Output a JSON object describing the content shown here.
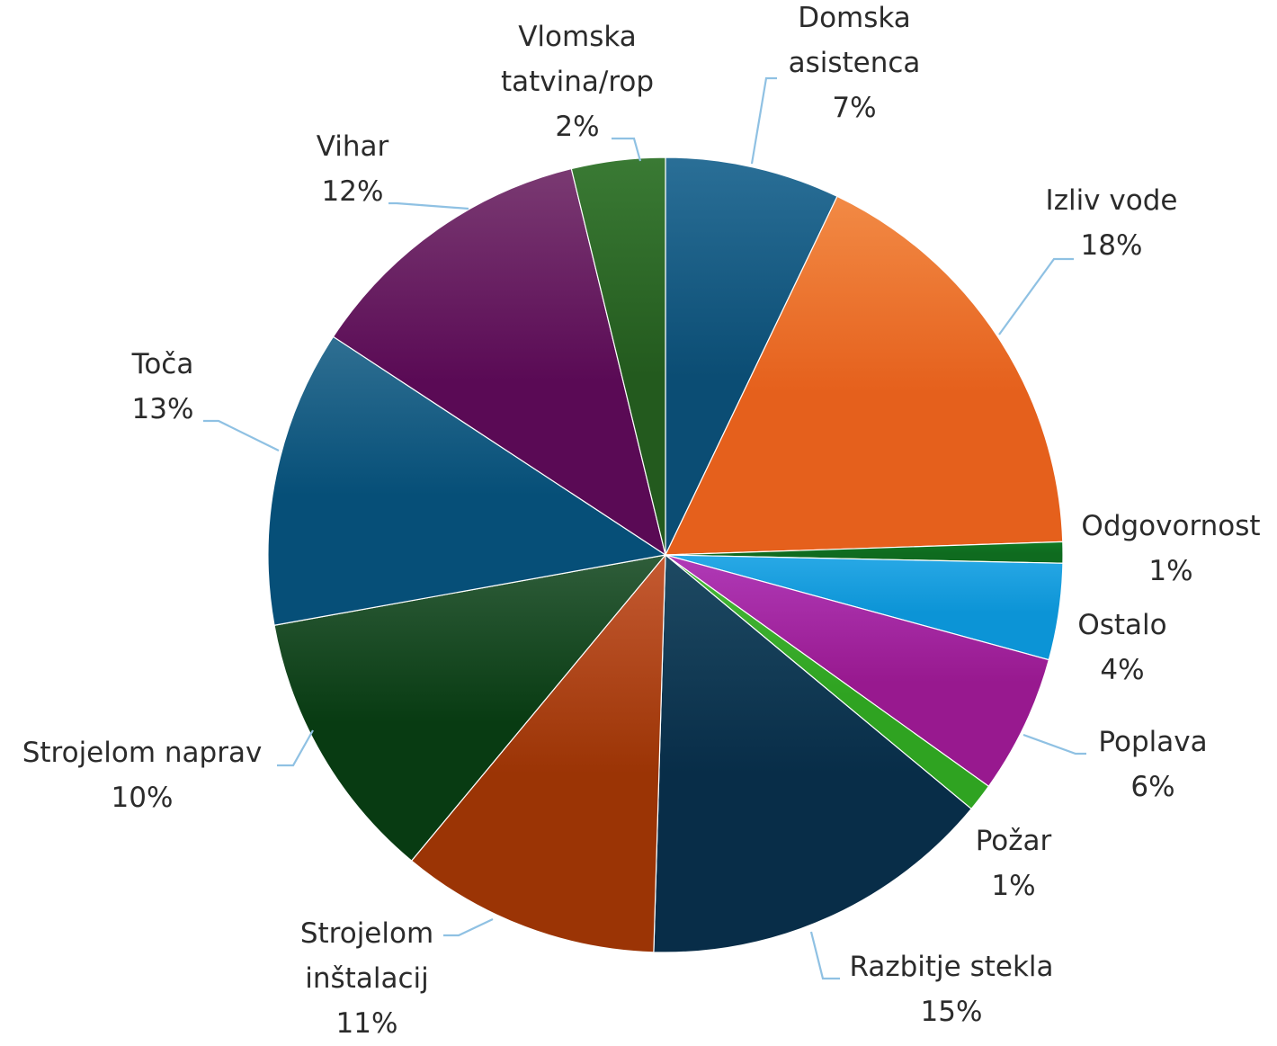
{
  "chart_data": {
    "type": "pie",
    "title": "",
    "slices": [
      {
        "label": "Domska\nasistenca",
        "percent_label": "7%",
        "value": 7,
        "color": "#2a6f97",
        "color_dark": "#0b4d74"
      },
      {
        "label": "Izliv vode",
        "percent_label": "18%",
        "value": 18,
        "color": "#f28a45",
        "color_dark": "#e5601c"
      },
      {
        "label": "Odgovornost",
        "percent_label": "1%",
        "value": 1,
        "color": "#0f7a23",
        "color_dark": "#0f6b1f"
      },
      {
        "label": "Ostalo",
        "percent_label": "4%",
        "value": 4,
        "color": "#29a9e6",
        "color_dark": "#0c94d6"
      },
      {
        "label": "Poplava",
        "percent_label": "6%",
        "value": 6,
        "color": "#b03ab7",
        "color_dark": "#98198f"
      },
      {
        "label": "Požar",
        "percent_label": "1%",
        "value": 1,
        "color": "#49b83a",
        "color_dark": "#2fa321"
      },
      {
        "label": "Razbitje stekla",
        "percent_label": "15%",
        "value": 15,
        "color": "#1e4a63",
        "color_dark": "#082d48"
      },
      {
        "label": "Strojelom\ninštalacij",
        "percent_label": "11%",
        "value": 11,
        "color": "#c55a32",
        "color_dark": "#9b3405"
      },
      {
        "label": "Strojelom naprav",
        "percent_label": "10%",
        "value": 10,
        "color": "#2f5d3a",
        "color_dark": "#083b12"
      },
      {
        "label": "Toča",
        "percent_label": "13%",
        "value": 13,
        "color": "#2f6f92",
        "color_dark": "#064f78"
      },
      {
        "label": "Vihar",
        "percent_label": "12%",
        "value": 12,
        "color": "#7a3a72",
        "color_dark": "#5a0a55"
      },
      {
        "label": "Vlomska\ntatvina/rop",
        "percent_label": "2%",
        "value": 2,
        "color": "#3a7a34",
        "color_dark": "#235a1e"
      }
    ],
    "legend": "none (data labels with leader lines)"
  }
}
